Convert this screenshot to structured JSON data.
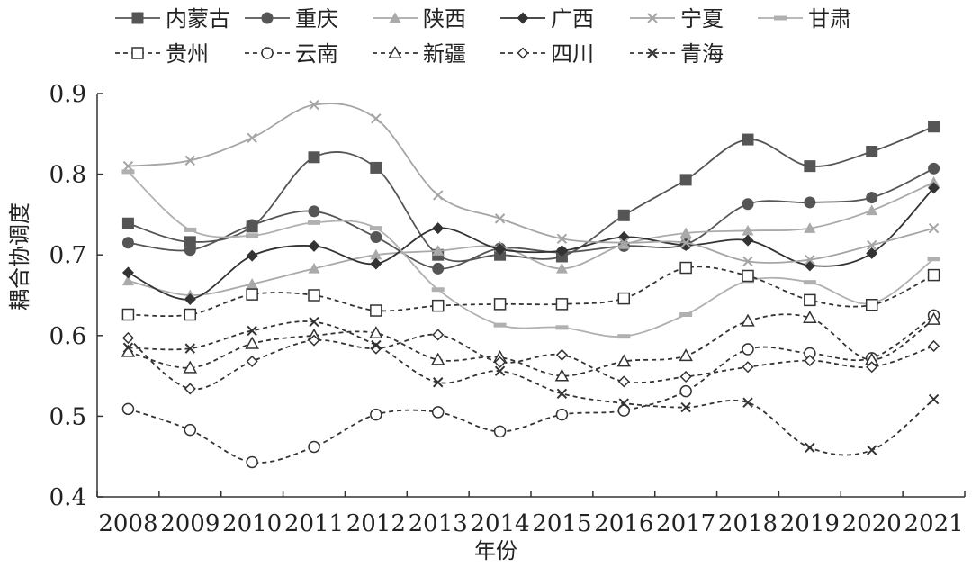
{
  "chart_data": {
    "type": "line",
    "title": "",
    "xlabel": "年份",
    "ylabel": "耦合协调度",
    "categories": [
      "2008",
      "2009",
      "2010",
      "2011",
      "2012",
      "2013",
      "2014",
      "2015",
      "2016",
      "2017",
      "2018",
      "2019",
      "2020",
      "2021"
    ],
    "yticks": [
      "0.4",
      "0.5",
      "0.6",
      "0.7",
      "0.8",
      "0.9"
    ],
    "ylim": [
      0.4,
      0.9
    ],
    "grid": false,
    "legend_position": "top",
    "series": [
      {
        "name": "内蒙古",
        "color": "#555555",
        "dash": "solid",
        "marker": "square-filled",
        "values": [
          0.739,
          0.716,
          0.735,
          0.821,
          0.808,
          0.7,
          0.7,
          0.698,
          0.749,
          0.793,
          0.843,
          0.81,
          0.828,
          0.859
        ]
      },
      {
        "name": "重庆",
        "color": "#555555",
        "dash": "solid",
        "marker": "circle-filled",
        "values": [
          0.715,
          0.706,
          0.737,
          0.754,
          0.722,
          0.683,
          0.708,
          0.703,
          0.711,
          0.713,
          0.763,
          0.765,
          0.771,
          0.807
        ]
      },
      {
        "name": "陕西",
        "color": "#aaaaaa",
        "dash": "solid",
        "marker": "triangle-filled",
        "values": [
          0.668,
          0.65,
          0.664,
          0.683,
          0.7,
          0.705,
          0.71,
          0.683,
          0.713,
          0.727,
          0.73,
          0.733,
          0.755,
          0.79
        ]
      },
      {
        "name": "广西",
        "color": "#333333",
        "dash": "solid",
        "marker": "diamond-filled",
        "values": [
          0.678,
          0.645,
          0.699,
          0.711,
          0.689,
          0.733,
          0.707,
          0.705,
          0.722,
          0.712,
          0.718,
          0.687,
          0.702,
          0.783
        ]
      },
      {
        "name": "宁夏",
        "color": "#a5a5a5",
        "dash": "solid",
        "marker": "x",
        "values": [
          0.81,
          0.817,
          0.845,
          0.886,
          0.869,
          0.774,
          0.745,
          0.72,
          0.715,
          0.715,
          0.692,
          0.694,
          0.712,
          0.733
        ]
      },
      {
        "name": "甘肃",
        "color": "#b0b0b0",
        "dash": "solid",
        "marker": "dash",
        "values": [
          0.803,
          0.731,
          0.724,
          0.74,
          0.733,
          0.657,
          0.613,
          0.61,
          0.599,
          0.626,
          0.668,
          0.666,
          0.64,
          0.695
        ]
      },
      {
        "name": "贵州",
        "color": "#333333",
        "dash": "dashed",
        "marker": "square-open",
        "values": [
          0.626,
          0.626,
          0.651,
          0.65,
          0.631,
          0.637,
          0.639,
          0.639,
          0.646,
          0.684,
          0.674,
          0.644,
          0.638,
          0.675
        ]
      },
      {
        "name": "云南",
        "color": "#333333",
        "dash": "dashed",
        "marker": "circle-open",
        "values": [
          0.509,
          0.483,
          0.443,
          0.462,
          0.502,
          0.505,
          0.481,
          0.502,
          0.507,
          0.531,
          0.583,
          0.578,
          0.572,
          0.625
        ]
      },
      {
        "name": "新疆",
        "color": "#333333",
        "dash": "dashed",
        "marker": "triangle-open",
        "values": [
          0.58,
          0.56,
          0.59,
          0.6,
          0.603,
          0.57,
          0.573,
          0.55,
          0.568,
          0.575,
          0.618,
          0.622,
          0.57,
          0.62
        ]
      },
      {
        "name": "四川",
        "color": "#333333",
        "dash": "dashed",
        "marker": "diamond-open",
        "values": [
          0.597,
          0.534,
          0.568,
          0.594,
          0.584,
          0.601,
          0.567,
          0.576,
          0.543,
          0.549,
          0.561,
          0.569,
          0.561,
          0.587
        ]
      },
      {
        "name": "青海",
        "color": "#333333",
        "dash": "dashed",
        "marker": "x",
        "values": [
          0.585,
          0.584,
          0.606,
          0.617,
          0.588,
          0.542,
          0.556,
          0.528,
          0.516,
          0.511,
          0.517,
          0.461,
          0.458,
          0.521
        ]
      }
    ]
  }
}
